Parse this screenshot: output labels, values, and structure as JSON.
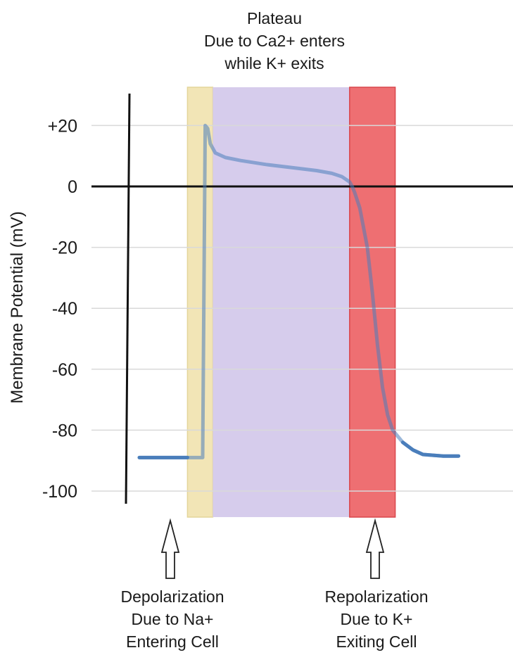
{
  "chart_data": {
    "type": "line",
    "title": "",
    "xlabel": "",
    "ylabel": "Membrane Potential (mV)",
    "ylim": [
      -108,
      28
    ],
    "yticks": [
      20,
      0,
      -20,
      -40,
      -60,
      -80,
      -100
    ],
    "ytick_labels": [
      "+20",
      "0",
      "-20",
      "-40",
      "-60",
      "-80",
      "-100"
    ],
    "grid": true,
    "x_units_note": "",
    "series": [
      {
        "name": "",
        "color": "#4a7ebb",
        "points": [
          [
            0,
            -89
          ],
          [
            12,
            -89
          ],
          [
            12.5,
            -89
          ],
          [
            13,
            20
          ],
          [
            13.5,
            19
          ],
          [
            14,
            14
          ],
          [
            15,
            11
          ],
          [
            17,
            9.5
          ],
          [
            20,
            8.5
          ],
          [
            25,
            7.2
          ],
          [
            30,
            6.2
          ],
          [
            35,
            5.2
          ],
          [
            38,
            4.3
          ],
          [
            40,
            3.2
          ],
          [
            41.5,
            1.5
          ],
          [
            42,
            0
          ],
          [
            42.5,
            -2
          ],
          [
            43.5,
            -7
          ],
          [
            45,
            -20
          ],
          [
            46,
            -35
          ],
          [
            47,
            -52
          ],
          [
            48,
            -66
          ],
          [
            49,
            -75
          ],
          [
            50,
            -80
          ],
          [
            52,
            -84
          ],
          [
            54,
            -86.5
          ],
          [
            56,
            -88
          ],
          [
            60,
            -88.5
          ],
          [
            63,
            -88.5
          ]
        ]
      }
    ],
    "phase_bands": [
      {
        "x_from": 9.5,
        "x_to": 14.5,
        "color": "#f2e5b6"
      },
      {
        "x_from": 14.5,
        "x_to": 41.5,
        "color": "#d6ccec"
      },
      {
        "x_from": 41.5,
        "x_to": 50.5,
        "color": "#ee6f72"
      }
    ],
    "xlim": [
      -5,
      67
    ]
  },
  "annotations": {
    "plateau": [
      "Plateau",
      "Due to Ca2+ enters",
      "while K+ exits"
    ],
    "depolarization": [
      "Depolarization",
      "Due to Na+",
      "Entering Cell"
    ],
    "repolarization": [
      "Repolarization",
      "Due to K+",
      "Exiting Cell"
    ]
  }
}
